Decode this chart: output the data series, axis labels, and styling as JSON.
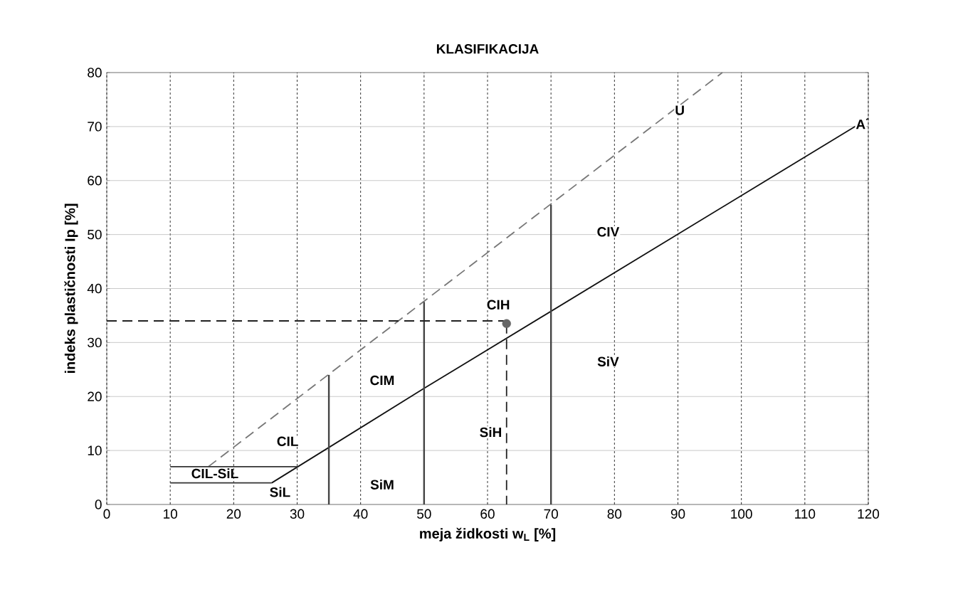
{
  "chart_data": {
    "type": "line",
    "title": "KLASIFIKACIJA",
    "xlabel": "meja židkosti  w$_{L}$ [%]",
    "ylabel": "indeks plastičnosti  Ip  [%]",
    "xlim": [
      0,
      120
    ],
    "ylim": [
      0,
      80
    ],
    "xticks": [
      0,
      10,
      20,
      30,
      40,
      50,
      60,
      70,
      80,
      90,
      100,
      110,
      120
    ],
    "yticks": [
      0,
      10,
      20,
      30,
      40,
      50,
      60,
      70,
      80
    ],
    "grid": true,
    "series": [
      {
        "type": "line",
        "x": [
          26,
          50,
          120
        ],
        "values": [
          4,
          21.5,
          71.5
        ],
        "color": "#111111",
        "line_style": "solid"
      },
      {
        "type": "line",
        "x": [
          16,
          97
        ],
        "values": [
          7,
          80
        ],
        "color": "#777777",
        "line_style": "dashed"
      },
      {
        "type": "line",
        "x": [
          10,
          30
        ],
        "values": [
          7,
          7
        ],
        "color": "#333333",
        "line_style": "solid"
      },
      {
        "type": "line",
        "x": [
          10,
          26
        ],
        "values": [
          4,
          4
        ],
        "color": "#333333",
        "line_style": "solid"
      },
      {
        "type": "line",
        "x": [
          35,
          35
        ],
        "values": [
          0,
          24
        ],
        "color": "#444444",
        "line_style": "solid"
      },
      {
        "type": "line",
        "x": [
          50,
          50
        ],
        "values": [
          0,
          37.5
        ],
        "color": "#444444",
        "line_style": "solid"
      },
      {
        "type": "line",
        "x": [
          70,
          70
        ],
        "values": [
          0,
          55.5
        ],
        "color": "#444444",
        "line_style": "solid"
      },
      {
        "type": "line",
        "x": [
          0,
          63
        ],
        "values": [
          34,
          34
        ],
        "color": "#222222",
        "line_style": "dashed"
      },
      {
        "type": "line",
        "x": [
          63,
          63
        ],
        "values": [
          33.5,
          0
        ],
        "color": "#222222",
        "line_style": "dashed"
      },
      {
        "type": "scatter",
        "x": [
          63
        ],
        "values": [
          33.5
        ],
        "color": "#666666",
        "marker": "circle"
      }
    ],
    "annotations": [
      {
        "text": "CIL",
        "x": 28.5,
        "y": 11.7
      },
      "CIL-SiL",
      {
        "text": "SiL",
        "x": 27.3,
        "y": 2.3
      },
      {
        "text": "CIM",
        "x": 43.4,
        "y": 23
      },
      {
        "text": "SiM",
        "x": 43.4,
        "y": 3.7
      },
      {
        "text": "CIH",
        "x": 61.7,
        "y": 37
      },
      {
        "text": "SiH",
        "x": 60.5,
        "y": 13.4
      },
      {
        "text": "CIV",
        "x": 79,
        "y": 50.5
      },
      {
        "text": "SiV",
        "x": 79,
        "y": 26.5
      },
      {
        "text": "U",
        "x": 90.3,
        "y": 73
      },
      {
        "text": "A",
        "x": 118.8,
        "y": 70.4
      }
    ]
  }
}
